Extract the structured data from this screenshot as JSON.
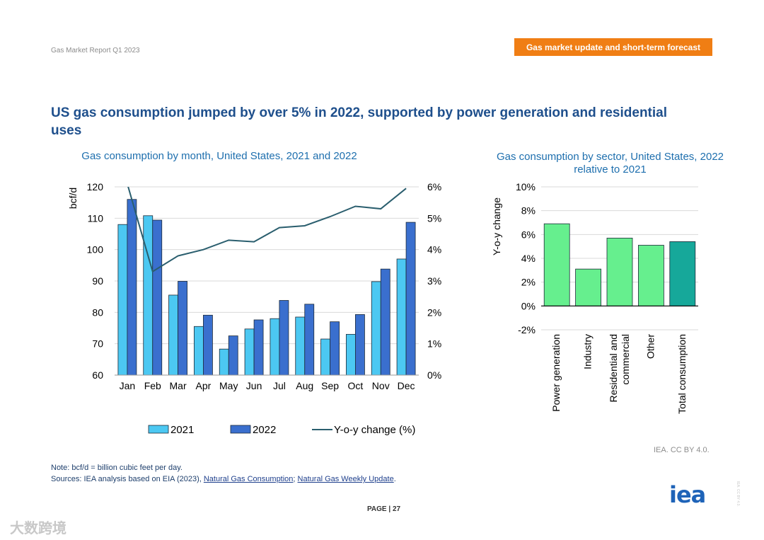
{
  "header": {
    "report_name": "Gas Market Report Q1 2023",
    "section_tag": "Gas market update and short-term forecast"
  },
  "page_title": "US gas consumption jumped by over 5% in 2022, supported by power generation and residential uses",
  "colors": {
    "bar_2021": "#4cc8f2",
    "bar_2022": "#3a6fce",
    "yoy_line": "#2a5e6e",
    "sector_bar": "#66ef8e",
    "total_bar": "#16a89a",
    "title_blue": "#1e6fae",
    "section_orange": "#f07e14"
  },
  "chart_data": [
    {
      "type": "bar",
      "title": "Gas consumption by month, United States, 2021 and 2022",
      "ylabel": "bcf/d",
      "ylim": [
        60,
        120
      ],
      "y_ticks": [
        "60",
        "70",
        "80",
        "90",
        "100",
        "110",
        "120"
      ],
      "y2lim": [
        0,
        6
      ],
      "y2_ticks": [
        "0%",
        "1%",
        "2%",
        "3%",
        "4%",
        "5%",
        "6%"
      ],
      "categories": [
        "Jan",
        "Feb",
        "Mar",
        "Apr",
        "May",
        "Jun",
        "Jul",
        "Aug",
        "Sep",
        "Oct",
        "Nov",
        "Dec"
      ],
      "series": [
        {
          "name": "2021",
          "values": [
            108,
            110.8,
            85.5,
            75.5,
            68.3,
            74.7,
            78,
            78.5,
            71.5,
            73,
            89.8,
            97
          ]
        },
        {
          "name": "2022",
          "values": [
            116,
            109.4,
            89.9,
            79.1,
            72.5,
            77.6,
            83.8,
            82.6,
            77,
            79.3,
            93.8,
            108.7
          ]
        },
        {
          "name": "Y-o-y change (%)",
          "type": "line",
          "axis": "secondary",
          "values": [
            6.1,
            3.3,
            3.8,
            4.0,
            4.3,
            4.25,
            4.7,
            4.76,
            5.05,
            5.38,
            5.3,
            5.95
          ]
        }
      ],
      "grid": true,
      "legend_position": "bottom"
    },
    {
      "type": "bar",
      "title": "Gas consumption by sector, United States, 2022 relative to 2021",
      "ylabel": "Y-o-y change",
      "ylim": [
        -2,
        10
      ],
      "y_ticks": [
        "-2%",
        "0%",
        "2%",
        "4%",
        "6%",
        "8%",
        "10%"
      ],
      "categories": [
        "Power generation",
        "Industry",
        "Residential and commercial",
        "Other",
        "Total consumption"
      ],
      "category_lines": [
        [
          "Power generation"
        ],
        [
          "Industry"
        ],
        [
          "Residential and",
          "commercial"
        ],
        [
          "Other"
        ],
        [
          "Total consumption"
        ]
      ],
      "values": [
        6.9,
        3.1,
        5.7,
        5.1,
        5.4
      ],
      "grid": true
    }
  ],
  "credit": "IEA. CC BY 4.0.",
  "note": {
    "line1": "Note: bcf/d = billion cubic feet per day.",
    "sources_prefix": "Sources: IEA analysis based on EIA (2023), ",
    "link1": "Natural Gas Consumption",
    "sep": "; ",
    "link2": "Natural Gas Weekly Update",
    "end": "."
  },
  "footer": {
    "page_label": "PAGE | 27",
    "logo": "iea",
    "watermark": "大数跨境",
    "side_mark": "IEA. CC BY 4.0."
  }
}
